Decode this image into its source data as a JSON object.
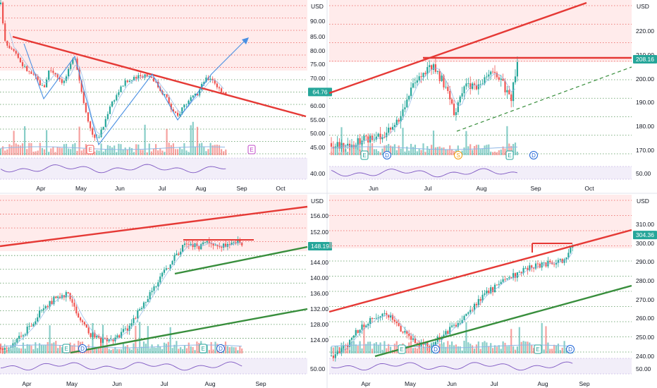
{
  "panels": [
    {
      "id": "tl",
      "currency": "USD",
      "chart_data": {
        "type": "candlestick",
        "xlabels": [
          "Apr",
          "May",
          "Jun",
          "Jul",
          "Aug",
          "Sep",
          "Oct"
        ],
        "ylabels": [
          "90.00",
          "85.00",
          "80.00",
          "75.00",
          "70.00",
          "65.00",
          "60.00",
          "55.00",
          "50.00",
          "45.00"
        ],
        "rsi_label": "40.00",
        "last_price": "64.76",
        "price_path": [
          [
            1,
            96
          ],
          [
            8,
            82
          ],
          [
            20,
            80
          ],
          [
            30,
            75
          ],
          [
            40,
            72
          ],
          [
            50,
            70
          ],
          [
            62,
            66
          ],
          [
            70,
            73
          ],
          [
            80,
            71
          ],
          [
            90,
            68
          ],
          [
            100,
            74
          ],
          [
            106,
            78
          ],
          [
            112,
            70
          ],
          [
            118,
            62
          ],
          [
            124,
            56
          ],
          [
            130,
            50
          ],
          [
            138,
            48
          ],
          [
            146,
            52
          ],
          [
            156,
            60
          ],
          [
            166,
            64
          ],
          [
            176,
            68
          ],
          [
            186,
            69
          ],
          [
            196,
            70
          ],
          [
            206,
            71
          ],
          [
            216,
            70
          ],
          [
            226,
            66
          ],
          [
            236,
            63
          ],
          [
            244,
            58
          ],
          [
            252,
            56
          ],
          [
            260,
            60
          ],
          [
            270,
            62
          ],
          [
            280,
            64
          ],
          [
            290,
            69
          ],
          [
            300,
            70
          ],
          [
            310,
            66
          ],
          [
            320,
            64.5
          ],
          [
            323,
            64.8
          ]
        ],
        "annotations": [
          "E",
          "E"
        ]
      }
    },
    {
      "id": "tr",
      "currency": "USD",
      "chart_data": {
        "type": "candlestick",
        "xlabels": [
          "Jun",
          "Jul",
          "Aug",
          "Sep",
          "Oct"
        ],
        "ylabels": [
          "220.00",
          "210.00",
          "200.00",
          "190.00",
          "180.00",
          "170.00"
        ],
        "rsi_label": "50.00",
        "last_price": "208.16",
        "price_path": [
          [
            470,
            173
          ],
          [
            490,
            172
          ],
          [
            510,
            174
          ],
          [
            530,
            175
          ],
          [
            550,
            178
          ],
          [
            565,
            182
          ],
          [
            575,
            190
          ],
          [
            585,
            196
          ],
          [
            595,
            200
          ],
          [
            605,
            204
          ],
          [
            615,
            206
          ],
          [
            625,
            200
          ],
          [
            635,
            196
          ],
          [
            645,
            185
          ],
          [
            655,
            194
          ],
          [
            665,
            198
          ],
          [
            675,
            195
          ],
          [
            685,
            199
          ],
          [
            695,
            203
          ],
          [
            705,
            200
          ],
          [
            715,
            197
          ],
          [
            725,
            192
          ],
          [
            735,
            207
          ]
        ],
        "annotations": [
          "E",
          "D",
          "S",
          "E",
          "D"
        ]
      }
    },
    {
      "id": "bl",
      "currency": "USD",
      "chart_data": {
        "type": "candlestick",
        "xlabels": [
          "Apr",
          "May",
          "Jun",
          "Jul",
          "Aug",
          "Sep"
        ],
        "ylabels": [
          "156.00",
          "152.00",
          "148.00",
          "144.00",
          "140.00",
          "136.00",
          "132.00",
          "128.00",
          "124.00"
        ],
        "rsi_label": "50.00",
        "last_price": "148.19",
        "price_path": [
          [
            1,
            122
          ],
          [
            20,
            123
          ],
          [
            40,
            127
          ],
          [
            60,
            132
          ],
          [
            80,
            135
          ],
          [
            95,
            136
          ],
          [
            110,
            130
          ],
          [
            125,
            126
          ],
          [
            140,
            124
          ],
          [
            160,
            124
          ],
          [
            180,
            127
          ],
          [
            200,
            132
          ],
          [
            220,
            138
          ],
          [
            235,
            142
          ],
          [
            250,
            146
          ],
          [
            265,
            149
          ],
          [
            280,
            148
          ],
          [
            295,
            149
          ],
          [
            310,
            148
          ],
          [
            325,
            149
          ],
          [
            340,
            150
          ],
          [
            344,
            148.2
          ]
        ],
        "annotations": [
          "E",
          "D",
          "E",
          "D"
        ]
      }
    },
    {
      "id": "br",
      "currency": "USD",
      "chart_data": {
        "type": "candlestick",
        "xlabels": [
          "Apr",
          "May",
          "Jun",
          "Jul",
          "Aug",
          "Sep"
        ],
        "ylabels": [
          "310.00",
          "300.00",
          "290.00",
          "280.00",
          "270.00",
          "260.00",
          "250.00",
          "240.00"
        ],
        "rsi_label": "50.00",
        "last_price": "304.36",
        "price_path": [
          [
            470,
            240
          ],
          [
            490,
            245
          ],
          [
            510,
            255
          ],
          [
            530,
            260
          ],
          [
            550,
            262
          ],
          [
            565,
            256
          ],
          [
            580,
            250
          ],
          [
            595,
            247
          ],
          [
            610,
            246
          ],
          [
            625,
            250
          ],
          [
            640,
            255
          ],
          [
            655,
            260
          ],
          [
            670,
            266
          ],
          [
            685,
            272
          ],
          [
            700,
            276
          ],
          [
            715,
            280
          ],
          [
            730,
            283
          ],
          [
            745,
            286
          ],
          [
            760,
            288
          ],
          [
            775,
            289
          ],
          [
            790,
            290
          ],
          [
            805,
            292
          ],
          [
            815,
            304
          ]
        ],
        "annotations": [
          "E",
          "D",
          "E",
          "D"
        ]
      }
    }
  ],
  "colors": {
    "up": "#26a69a",
    "down": "#ef5350",
    "trend_red": "#e53935",
    "trend_green": "#388e3c",
    "projection_blue": "#4a90e2",
    "ma_blue": "#90b8e6",
    "rsi": "#7e57c2",
    "resistance_zone": "rgba(255,205,205,0.40)",
    "price_badge": "#26a69a"
  }
}
